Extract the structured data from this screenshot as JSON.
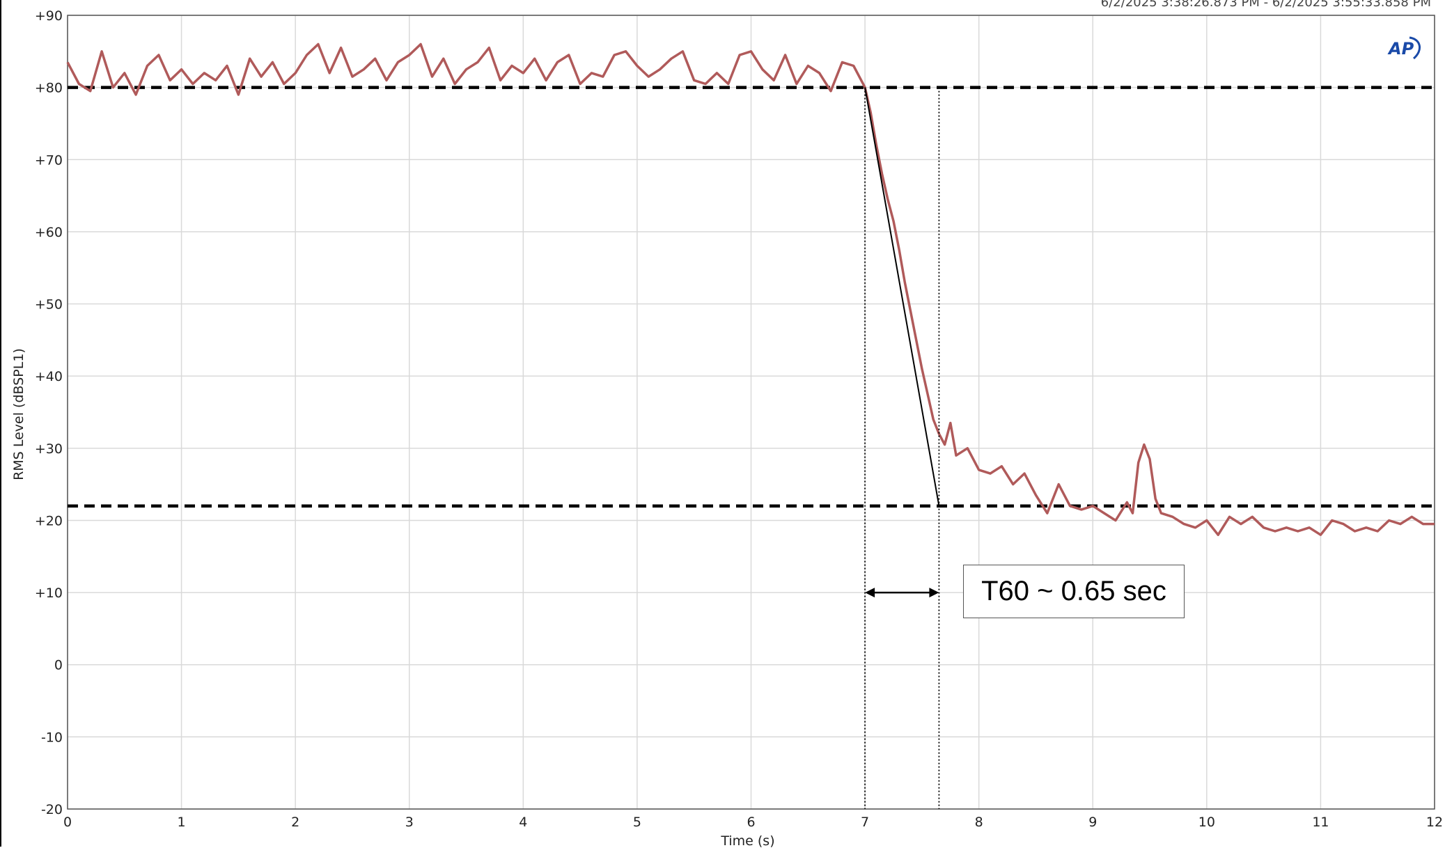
{
  "chart_data": {
    "type": "line",
    "header_text": "6/2/2025 3:38:26.873 PM - 6/2/2025 3:55:33.858 PM",
    "xlabel": "Time (s)",
    "ylabel": "RMS Level (dBSPL1)",
    "xlim": [
      0,
      12
    ],
    "ylim": [
      -20,
      90
    ],
    "x_ticks": [
      0,
      1,
      2,
      3,
      4,
      5,
      6,
      7,
      8,
      9,
      10,
      11,
      12
    ],
    "x_tick_labels": [
      "0",
      "1",
      "2",
      "3",
      "4",
      "5",
      "6",
      "7",
      "8",
      "9",
      "10",
      "11",
      "12"
    ],
    "y_ticks": [
      90,
      80,
      70,
      60,
      50,
      40,
      30,
      20,
      10,
      0,
      -10,
      -20
    ],
    "y_tick_labels": [
      "+90",
      "+80",
      "+70",
      "+60",
      "+50",
      "+40",
      "+30",
      "+20",
      "+10",
      "0",
      "-10",
      "-20"
    ],
    "grid": true,
    "series": [
      {
        "color": "#b05a5a",
        "points": [
          [
            0.0,
            83.5
          ],
          [
            0.1,
            80.5
          ],
          [
            0.2,
            79.5
          ],
          [
            0.3,
            85.0
          ],
          [
            0.4,
            80.0
          ],
          [
            0.5,
            82.0
          ],
          [
            0.6,
            79.0
          ],
          [
            0.7,
            83.0
          ],
          [
            0.8,
            84.5
          ],
          [
            0.9,
            81.0
          ],
          [
            1.0,
            82.5
          ],
          [
            1.1,
            80.5
          ],
          [
            1.2,
            82.0
          ],
          [
            1.3,
            81.0
          ],
          [
            1.4,
            83.0
          ],
          [
            1.5,
            79.0
          ],
          [
            1.6,
            84.0
          ],
          [
            1.7,
            81.5
          ],
          [
            1.8,
            83.5
          ],
          [
            1.9,
            80.5
          ],
          [
            2.0,
            82.0
          ],
          [
            2.1,
            84.5
          ],
          [
            2.2,
            86.0
          ],
          [
            2.3,
            82.0
          ],
          [
            2.4,
            85.5
          ],
          [
            2.5,
            81.5
          ],
          [
            2.6,
            82.5
          ],
          [
            2.7,
            84.0
          ],
          [
            2.8,
            81.0
          ],
          [
            2.9,
            83.5
          ],
          [
            3.0,
            84.5
          ],
          [
            3.1,
            86.0
          ],
          [
            3.2,
            81.5
          ],
          [
            3.3,
            84.0
          ],
          [
            3.4,
            80.5
          ],
          [
            3.5,
            82.5
          ],
          [
            3.6,
            83.5
          ],
          [
            3.7,
            85.5
          ],
          [
            3.8,
            81.0
          ],
          [
            3.9,
            83.0
          ],
          [
            4.0,
            82.0
          ],
          [
            4.1,
            84.0
          ],
          [
            4.2,
            81.0
          ],
          [
            4.3,
            83.5
          ],
          [
            4.4,
            84.5
          ],
          [
            4.5,
            80.5
          ],
          [
            4.6,
            82.0
          ],
          [
            4.7,
            81.5
          ],
          [
            4.8,
            84.5
          ],
          [
            4.9,
            85.0
          ],
          [
            5.0,
            83.0
          ],
          [
            5.1,
            81.5
          ],
          [
            5.2,
            82.5
          ],
          [
            5.3,
            84.0
          ],
          [
            5.4,
            85.0
          ],
          [
            5.5,
            81.0
          ],
          [
            5.6,
            80.5
          ],
          [
            5.7,
            82.0
          ],
          [
            5.8,
            80.5
          ],
          [
            5.9,
            84.5
          ],
          [
            6.0,
            85.0
          ],
          [
            6.1,
            82.5
          ],
          [
            6.2,
            81.0
          ],
          [
            6.3,
            84.5
          ],
          [
            6.4,
            80.5
          ],
          [
            6.5,
            83.0
          ],
          [
            6.6,
            82.0
          ],
          [
            6.7,
            79.5
          ],
          [
            6.8,
            83.5
          ],
          [
            6.9,
            83.0
          ],
          [
            7.0,
            80.0
          ],
          [
            7.05,
            76.5
          ],
          [
            7.1,
            72.0
          ],
          [
            7.15,
            68.0
          ],
          [
            7.2,
            64.5
          ],
          [
            7.25,
            61.5
          ],
          [
            7.3,
            57.5
          ],
          [
            7.35,
            53.0
          ],
          [
            7.4,
            49.0
          ],
          [
            7.45,
            45.0
          ],
          [
            7.5,
            41.0
          ],
          [
            7.55,
            37.5
          ],
          [
            7.6,
            34.0
          ],
          [
            7.65,
            32.0
          ],
          [
            7.7,
            30.5
          ],
          [
            7.75,
            33.5
          ],
          [
            7.8,
            29.0
          ],
          [
            7.9,
            30.0
          ],
          [
            8.0,
            27.0
          ],
          [
            8.1,
            26.5
          ],
          [
            8.2,
            27.5
          ],
          [
            8.3,
            25.0
          ],
          [
            8.4,
            26.5
          ],
          [
            8.5,
            23.5
          ],
          [
            8.6,
            21.0
          ],
          [
            8.7,
            25.0
          ],
          [
            8.8,
            22.0
          ],
          [
            8.9,
            21.5
          ],
          [
            9.0,
            22.0
          ],
          [
            9.1,
            21.0
          ],
          [
            9.2,
            20.0
          ],
          [
            9.3,
            22.5
          ],
          [
            9.35,
            21.0
          ],
          [
            9.4,
            28.0
          ],
          [
            9.45,
            30.5
          ],
          [
            9.5,
            28.5
          ],
          [
            9.55,
            23.0
          ],
          [
            9.6,
            21.0
          ],
          [
            9.7,
            20.5
          ],
          [
            9.8,
            19.5
          ],
          [
            9.9,
            19.0
          ],
          [
            10.0,
            20.0
          ],
          [
            10.1,
            18.0
          ],
          [
            10.2,
            20.5
          ],
          [
            10.3,
            19.5
          ],
          [
            10.4,
            20.5
          ],
          [
            10.5,
            19.0
          ],
          [
            10.6,
            18.5
          ],
          [
            10.7,
            19.0
          ],
          [
            10.8,
            18.5
          ],
          [
            10.9,
            19.0
          ],
          [
            11.0,
            18.0
          ],
          [
            11.1,
            20.0
          ],
          [
            11.2,
            19.5
          ],
          [
            11.3,
            18.5
          ],
          [
            11.4,
            19.0
          ],
          [
            11.5,
            18.5
          ],
          [
            11.6,
            20.0
          ],
          [
            11.7,
            19.5
          ],
          [
            11.8,
            20.5
          ],
          [
            11.9,
            19.5
          ],
          [
            12.0,
            19.5
          ]
        ]
      }
    ],
    "reference_lines": [
      {
        "kind": "horizontal-dashed",
        "y": 80
      },
      {
        "kind": "horizontal-dashed",
        "y": 22
      }
    ],
    "decay_fit_line": {
      "from": [
        7.0,
        80
      ],
      "to": [
        7.65,
        22
      ]
    },
    "vertical_markers": [
      7.0,
      7.65
    ],
    "annotation": {
      "text": "T60 ~ 0.65 sec",
      "arrow_from": [
        7.0,
        10
      ],
      "arrow_to": [
        7.65,
        10
      ]
    }
  },
  "logo": {
    "text": "AP",
    "color": "#1a4aa8"
  },
  "colors": {
    "trace": "#b05a5a",
    "grid": "#d9d9d9"
  }
}
